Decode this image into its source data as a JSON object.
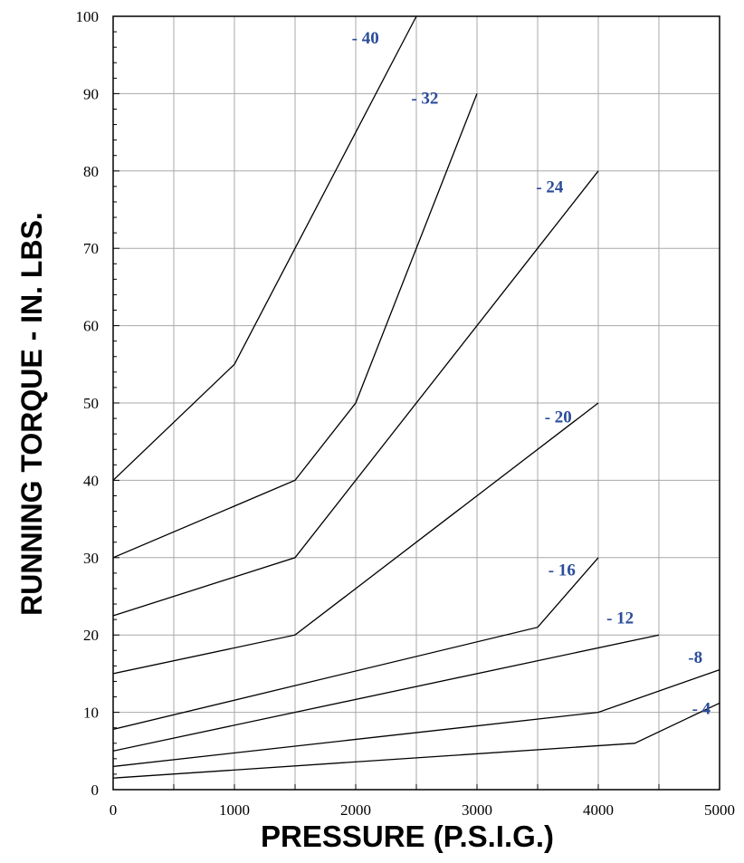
{
  "chart_data": {
    "type": "line",
    "title": "",
    "xlabel": "PRESSURE (P.S.I.G.)",
    "ylabel": "RUNNING TORQUE - IN. LBS.",
    "xlim": [
      0,
      5000
    ],
    "ylim": [
      0,
      100
    ],
    "xticks": [
      "0",
      "1000",
      "2000",
      "3000",
      "4000",
      "5000"
    ],
    "yticks": [
      "0",
      "10",
      "20",
      "30",
      "40",
      "50",
      "60",
      "70",
      "80",
      "90",
      "100"
    ],
    "grid": true,
    "line_color": "#000000",
    "label_color": "#2b4d9a",
    "series": [
      {
        "name": "- 40",
        "x": [
          0,
          1000,
          1500,
          2500
        ],
        "y": [
          40,
          55,
          70,
          100
        ]
      },
      {
        "name": "- 32",
        "x": [
          0,
          1500,
          2000,
          3000
        ],
        "y": [
          30,
          40,
          50,
          90
        ]
      },
      {
        "name": "- 24",
        "x": [
          0,
          1500,
          3500,
          4000
        ],
        "y": [
          22.5,
          30,
          70,
          80
        ]
      },
      {
        "name": "- 20",
        "x": [
          0,
          1500,
          4000
        ],
        "y": [
          15,
          20,
          50
        ]
      },
      {
        "name": "- 16",
        "x": [
          0,
          3500,
          4000
        ],
        "y": [
          7.8,
          21,
          30
        ]
      },
      {
        "name": "- 12",
        "x": [
          0,
          4500
        ],
        "y": [
          5,
          20
        ]
      },
      {
        "name": "-8",
        "x": [
          0,
          4000,
          5000
        ],
        "y": [
          3,
          10,
          15.5
        ]
      },
      {
        "name": "- 4",
        "x": [
          0,
          4300,
          5000
        ],
        "y": [
          1.5,
          6,
          11.2
        ]
      }
    ]
  }
}
